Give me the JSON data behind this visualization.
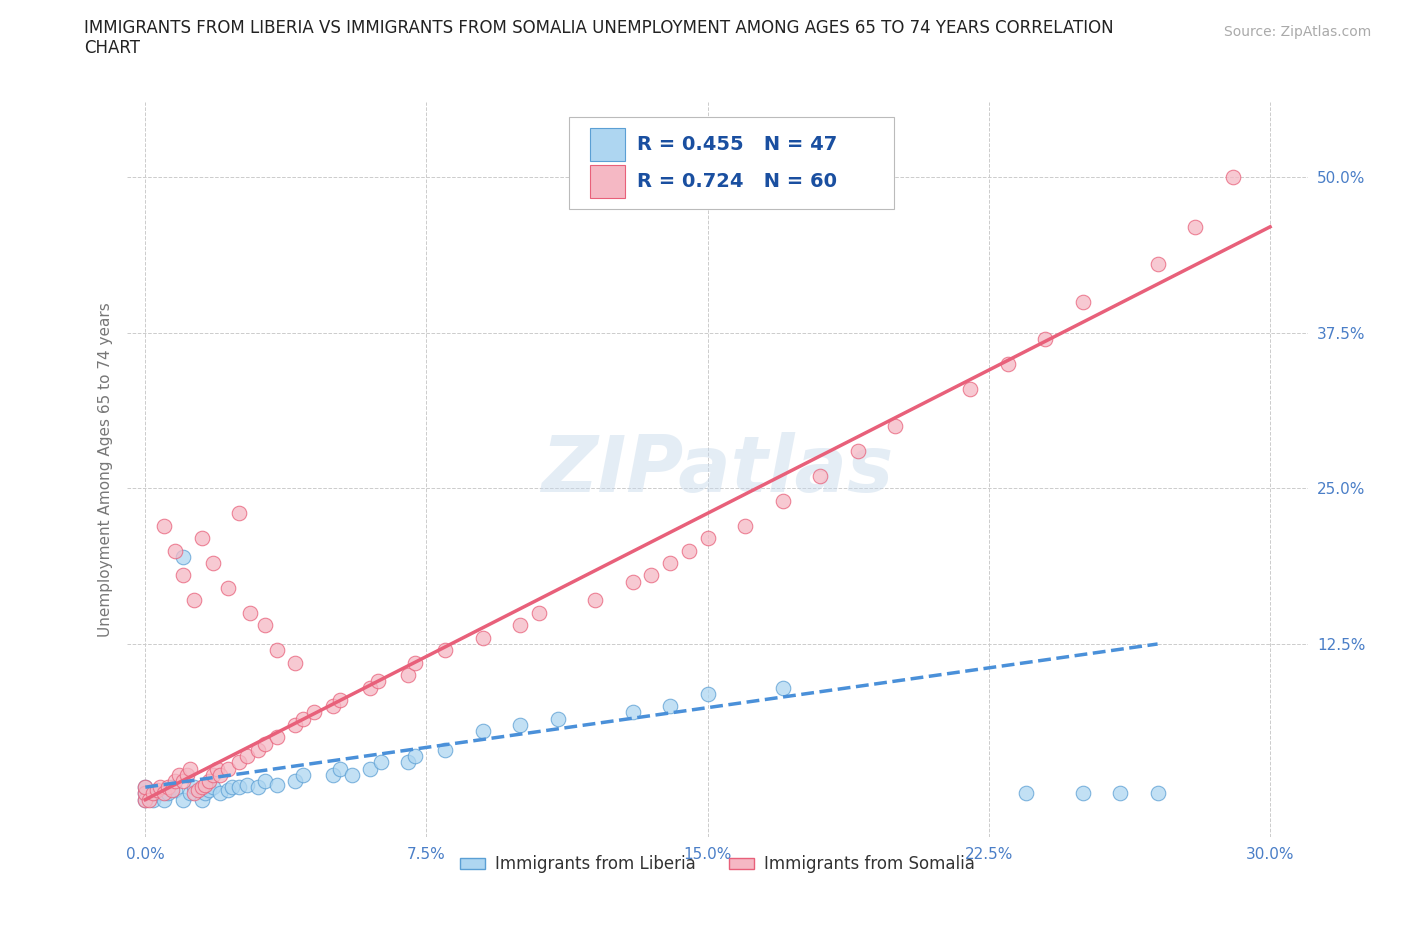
{
  "title_line1": "IMMIGRANTS FROM LIBERIA VS IMMIGRANTS FROM SOMALIA UNEMPLOYMENT AMONG AGES 65 TO 74 YEARS CORRELATION",
  "title_line2": "CHART",
  "source": "Source: ZipAtlas.com",
  "ylabel": "Unemployment Among Ages 65 to 74 years",
  "xlim": [
    -0.005,
    0.31
  ],
  "ylim": [
    -0.03,
    0.56
  ],
  "xtick_values": [
    0.0,
    0.075,
    0.15,
    0.225,
    0.3
  ],
  "xtick_labels": [
    "0.0%",
    "7.5%",
    "15.0%",
    "22.5%",
    "30.0%"
  ],
  "ytick_values": [
    0.125,
    0.25,
    0.375,
    0.5
  ],
  "ytick_labels": [
    "12.5%",
    "25.0%",
    "37.5%",
    "50.0%"
  ],
  "liberia_R": 0.455,
  "liberia_N": 47,
  "somalia_R": 0.724,
  "somalia_N": 60,
  "liberia_color": "#aed6f1",
  "liberia_edge_color": "#5b9fd4",
  "somalia_color": "#f5b8c4",
  "somalia_edge_color": "#e8607a",
  "liberia_line_color": "#4a90d9",
  "somalia_line_color": "#e8607a",
  "legend_liberia_label": "Immigrants from Liberia",
  "legend_somalia_label": "Immigrants from Somalia",
  "watermark": "ZIPatlas",
  "background_color": "#ffffff",
  "grid_color": "#cccccc",
  "legend_text_color": "#1a4fa0",
  "title_color": "#222222",
  "tick_color": "#4a7ec7",
  "liberia_x": [
    0.0,
    0.0,
    0.0,
    0.002,
    0.003,
    0.004,
    0.005,
    0.006,
    0.007,
    0.008,
    0.01,
    0.012,
    0.013,
    0.015,
    0.016,
    0.017,
    0.018,
    0.02,
    0.022,
    0.023,
    0.025,
    0.027,
    0.03,
    0.032,
    0.035,
    0.04,
    0.042,
    0.05,
    0.052,
    0.055,
    0.06,
    0.063,
    0.07,
    0.072,
    0.08,
    0.09,
    0.1,
    0.11,
    0.13,
    0.14,
    0.15,
    0.17,
    0.235,
    0.25,
    0.26,
    0.27,
    0.01
  ],
  "liberia_y": [
    0.0,
    0.005,
    0.01,
    0.0,
    0.005,
    0.005,
    0.0,
    0.005,
    0.01,
    0.008,
    0.0,
    0.005,
    0.01,
    0.0,
    0.005,
    0.008,
    0.01,
    0.005,
    0.008,
    0.01,
    0.01,
    0.012,
    0.01,
    0.015,
    0.012,
    0.015,
    0.02,
    0.02,
    0.025,
    0.02,
    0.025,
    0.03,
    0.03,
    0.035,
    0.04,
    0.055,
    0.06,
    0.065,
    0.07,
    0.075,
    0.085,
    0.09,
    0.005,
    0.005,
    0.005,
    0.005,
    0.195
  ],
  "somalia_x": [
    0.0,
    0.0,
    0.0,
    0.001,
    0.002,
    0.003,
    0.004,
    0.005,
    0.006,
    0.007,
    0.008,
    0.009,
    0.01,
    0.011,
    0.012,
    0.013,
    0.014,
    0.015,
    0.016,
    0.017,
    0.018,
    0.019,
    0.02,
    0.022,
    0.025,
    0.027,
    0.03,
    0.032,
    0.035,
    0.04,
    0.042,
    0.045,
    0.05,
    0.052,
    0.06,
    0.062,
    0.07,
    0.072,
    0.08,
    0.09,
    0.1,
    0.105,
    0.12,
    0.13,
    0.135,
    0.14,
    0.145,
    0.15,
    0.16,
    0.17,
    0.18,
    0.19,
    0.2,
    0.22,
    0.23,
    0.24,
    0.25,
    0.27,
    0.28,
    0.29
  ],
  "somalia_y": [
    0.0,
    0.005,
    0.01,
    0.0,
    0.005,
    0.008,
    0.01,
    0.005,
    0.01,
    0.008,
    0.015,
    0.02,
    0.015,
    0.02,
    0.025,
    0.005,
    0.008,
    0.01,
    0.012,
    0.015,
    0.02,
    0.025,
    0.02,
    0.025,
    0.03,
    0.035,
    0.04,
    0.045,
    0.05,
    0.06,
    0.065,
    0.07,
    0.075,
    0.08,
    0.09,
    0.095,
    0.1,
    0.11,
    0.12,
    0.13,
    0.14,
    0.15,
    0.16,
    0.175,
    0.18,
    0.19,
    0.2,
    0.21,
    0.22,
    0.24,
    0.26,
    0.28,
    0.3,
    0.33,
    0.35,
    0.37,
    0.4,
    0.43,
    0.46,
    0.5
  ],
  "somalia_extra_x": [
    0.005,
    0.008,
    0.01,
    0.013,
    0.015,
    0.018,
    0.022,
    0.025,
    0.028,
    0.032,
    0.035,
    0.04
  ],
  "somalia_extra_y": [
    0.22,
    0.2,
    0.18,
    0.16,
    0.21,
    0.19,
    0.17,
    0.23,
    0.15,
    0.14,
    0.12,
    0.11
  ]
}
